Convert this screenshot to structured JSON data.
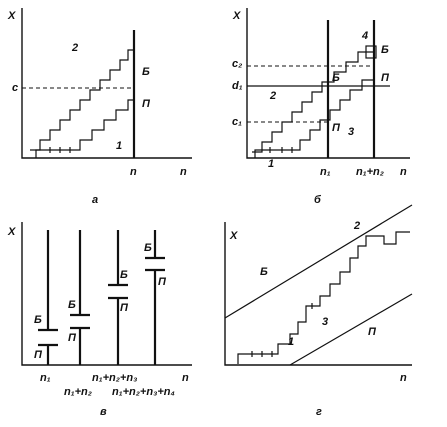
{
  "panels": [
    {
      "caption": "а",
      "labels": [
        "X",
        "2",
        "c",
        "Б",
        "П",
        "1",
        "n",
        "n"
      ]
    },
    {
      "caption": "б",
      "labels": [
        "X",
        "4",
        "c₂",
        "Б",
        "d₁",
        "Б",
        "П",
        "2",
        "c₁",
        "П",
        "3",
        "1",
        "n₁",
        "n₁+n₂",
        "n"
      ]
    },
    {
      "caption": "в",
      "labels": [
        "X",
        "Б",
        "П",
        "Б",
        "П",
        "Б",
        "П",
        "Б",
        "П",
        "n₁",
        "n₁+n₂",
        "n₁+n₂+n₃",
        "n₁+n₂+n₃+n₄",
        "n"
      ]
    },
    {
      "caption": "г",
      "labels": [
        "X",
        "2",
        "Б",
        "3",
        "1",
        "П",
        "n"
      ]
    }
  ]
}
